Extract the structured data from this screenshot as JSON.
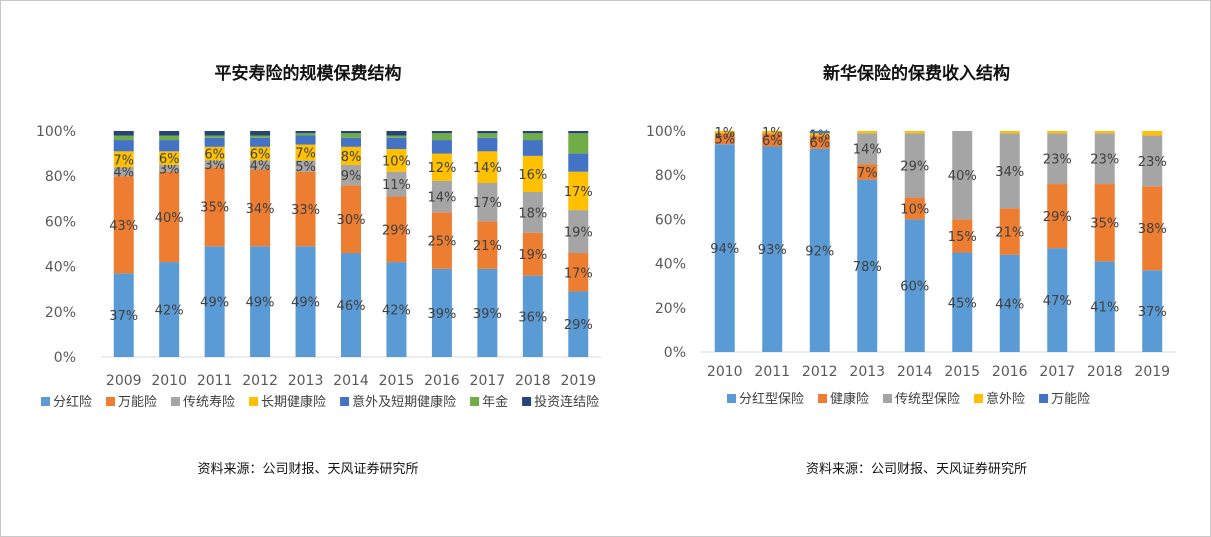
{
  "source_text": "资料来源：公司财报、天风证券研究所",
  "chart_data": [
    {
      "type": "bar",
      "stacked": true,
      "title": "平安寿险的规模保费结构",
      "categories": [
        "2009",
        "2010",
        "2011",
        "2012",
        "2013",
        "2014",
        "2015",
        "2016",
        "2017",
        "2018",
        "2019"
      ],
      "y_ticks": [
        "0%",
        "20%",
        "40%",
        "60%",
        "80%",
        "100%"
      ],
      "ylim": [
        0,
        100
      ],
      "legend_position": "bottom",
      "series": [
        {
          "name": "分红险",
          "color": "#5b9bd5",
          "values": [
            37,
            42,
            49,
            49,
            49,
            46,
            42,
            39,
            39,
            36,
            29
          ],
          "labels": [
            "37%",
            "42%",
            "49%",
            "49%",
            "49%",
            "46%",
            "42%",
            "39%",
            "39%",
            "36%",
            "29%"
          ]
        },
        {
          "name": "万能险",
          "color": "#ed7d31",
          "values": [
            43,
            40,
            35,
            34,
            33,
            30,
            29,
            25,
            21,
            19,
            17
          ],
          "labels": [
            "43%",
            "40%",
            "35%",
            "34%",
            "33%",
            "30%",
            "29%",
            "25%",
            "21%",
            "19%",
            "17%"
          ]
        },
        {
          "name": "传统寿险",
          "color": "#a5a5a5",
          "values": [
            4,
            3,
            3,
            4,
            5,
            9,
            11,
            14,
            17,
            18,
            19
          ],
          "labels": [
            "4%",
            "3%",
            "3%",
            "4%",
            "5%",
            "9%",
            "11%",
            "14%",
            "17%",
            "18%",
            "19%"
          ]
        },
        {
          "name": "长期健康险",
          "color": "#ffc000",
          "values": [
            7,
            6,
            6,
            6,
            7,
            8,
            10,
            12,
            14,
            16,
            17
          ],
          "labels": [
            "7%",
            "6%",
            "6%",
            "6%",
            "7%",
            "8%",
            "10%",
            "12%",
            "14%",
            "16%",
            "17%"
          ]
        },
        {
          "name": "意外及短期健康险",
          "color": "#4472c4",
          "values": [
            5,
            5,
            4,
            4,
            4,
            4,
            5,
            6,
            6,
            7,
            8
          ],
          "labels": [
            "",
            "",
            "",
            "",
            "",
            "",
            "",
            "",
            "",
            "",
            ""
          ]
        },
        {
          "name": "年金",
          "color": "#70ad47",
          "values": [
            2,
            2,
            1,
            1,
            1,
            2,
            1,
            3,
            2,
            3,
            9
          ],
          "labels": [
            "",
            "",
            "",
            "",
            "",
            "",
            "",
            "",
            "",
            "",
            ""
          ]
        },
        {
          "name": "投资连结险",
          "color": "#264478",
          "values": [
            2,
            2,
            2,
            2,
            1,
            1,
            2,
            1,
            1,
            1,
            1
          ],
          "labels": [
            "",
            "",
            "",
            "",
            "",
            "",
            "",
            "",
            "",
            "",
            ""
          ]
        }
      ]
    },
    {
      "type": "bar",
      "stacked": true,
      "title": "新华保险的保费收入结构",
      "categories": [
        "2010",
        "2011",
        "2012",
        "2013",
        "2014",
        "2015",
        "2016",
        "2017",
        "2018",
        "2019"
      ],
      "y_ticks": [
        "0%",
        "20%",
        "40%",
        "60%",
        "80%",
        "100%"
      ],
      "ylim": [
        0,
        100
      ],
      "legend_position": "bottom",
      "series": [
        {
          "name": "分红型保险",
          "color": "#5b9bd5",
          "values": [
            94,
            93,
            92,
            78,
            60,
            45,
            44,
            47,
            41,
            37
          ],
          "labels": [
            "94%",
            "93%",
            "92%",
            "78%",
            "60%",
            "45%",
            "44%",
            "47%",
            "41%",
            "37%"
          ]
        },
        {
          "name": "健康险",
          "color": "#ed7d31",
          "values": [
            5,
            6,
            6,
            7,
            10,
            15,
            21,
            29,
            35,
            38
          ],
          "labels": [
            "5%",
            "6%",
            "6%",
            "7%",
            "10%",
            "15%",
            "21%",
            "29%",
            "35%",
            "38%"
          ]
        },
        {
          "name": "传统型保险",
          "color": "#a5a5a5",
          "values": [
            0,
            0,
            0,
            14,
            29,
            40,
            34,
            23,
            23,
            23
          ],
          "labels": [
            "",
            "",
            "",
            "14%",
            "29%",
            "40%",
            "34%",
            "23%",
            "23%",
            "23%"
          ]
        },
        {
          "name": "意外险",
          "color": "#ffc000",
          "values": [
            1,
            1,
            1,
            1,
            1,
            0,
            1,
            1,
            1,
            2
          ],
          "labels": [
            "1%",
            "1%",
            "1%",
            "",
            "",
            "",
            "",
            "",
            "",
            ""
          ]
        },
        {
          "name": "万能险",
          "color": "#4472c4",
          "values": [
            0,
            0,
            1,
            0,
            0,
            0,
            0,
            0,
            0,
            0
          ],
          "labels": [
            "",
            "",
            "",
            "",
            "",
            "",
            "",
            "",
            "",
            ""
          ]
        }
      ]
    }
  ]
}
